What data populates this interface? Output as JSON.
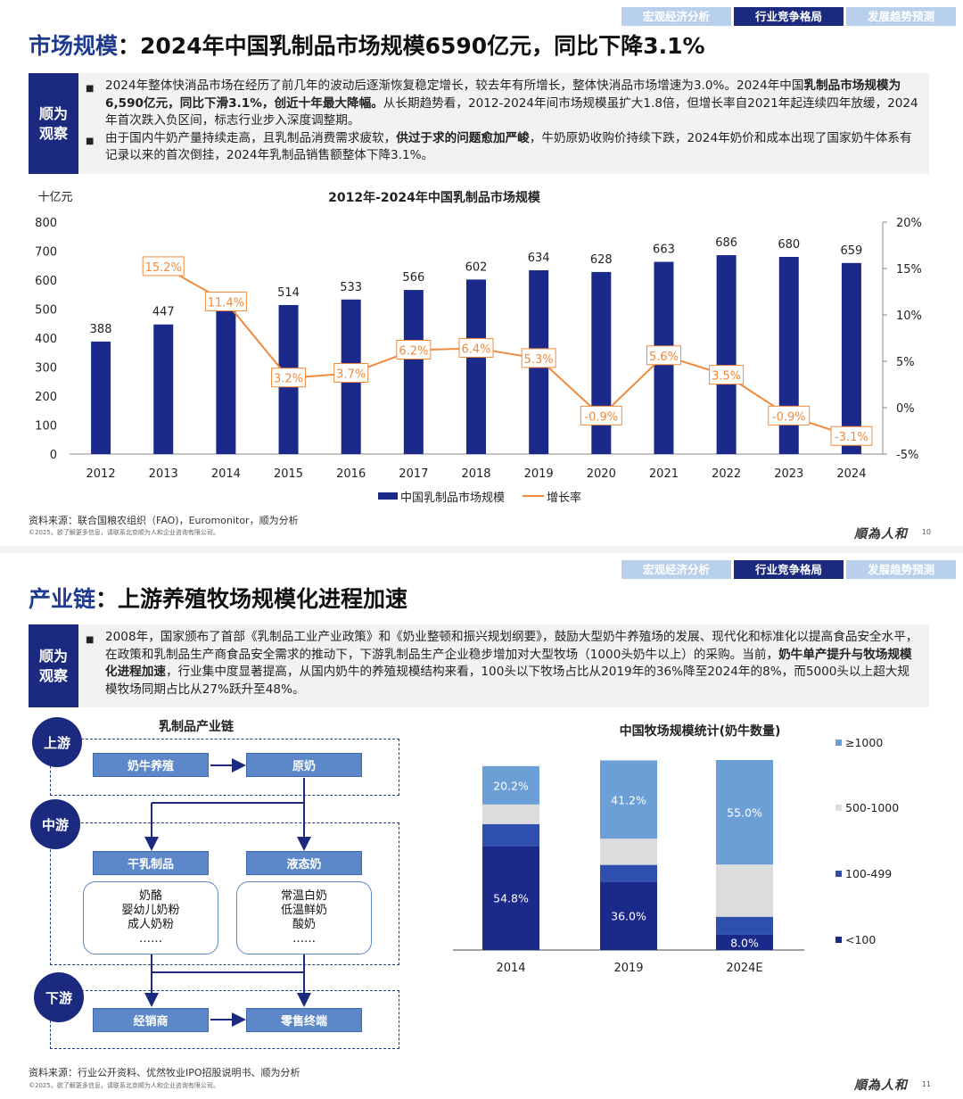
{
  "slide1": {
    "tabs": [
      "宏观经济分析",
      "行业竞争格局",
      "发展趋势预测"
    ],
    "title_key": "市场规模",
    "title_rest": "：2024年中国乳制品市场规模6590亿元，同比下降3.1%",
    "obs_badge": [
      "顺为",
      "观察"
    ],
    "bullet1": {
      "a": "2024年整体快消品市场在经历了前几年的波动后逐渐恢复稳定增长，较去年有所增长，整体快消品市场增速为3.0%。2024年中国",
      "b": "乳制品市场规模为6,590亿元，同比下滑3.1%，创近十年最大降幅。",
      "c": "从长期趋势看，2012-2024年间市场规模虽扩大1.8倍，但增长率自2021年起连续四年放缓，2024年首次跌入负区间，标志行业步入深度调整期。"
    },
    "bullet2": {
      "a": "由于国内牛奶产量持续走高，且乳制品消费需求疲软，",
      "b": "供过于求的问题愈加严峻",
      "c": "，牛奶原奶收购价持续下跌，2024年奶价和成本出现了国家奶牛体系有记录以来的首次倒挂，2024年乳制品销售额整体下降3.1%。"
    },
    "source": "资料来源：联合国粮农组织（FAO)，Euromonitor，顺为分析",
    "copyright": "©2025。欲了解更多信息，请联系北京顺为人和企业咨询有限公司。",
    "logo": "順為人和",
    "page": "10"
  },
  "slide2": {
    "tabs": [
      "宏观经济分析",
      "行业竞争格局",
      "发展趋势预测"
    ],
    "title_key": "产业链",
    "title_rest": "：上游养殖牧场规模化进程加速",
    "obs_badge": [
      "顺为",
      "观察"
    ],
    "bullet1": {
      "a": "2008年，国家颁布了首部《乳制品工业产业政策》和《奶业整顿和振兴规划纲要》，鼓励大型奶牛养殖场的发展、现代化和标准化以提高食品安全水平，在政策和乳制品生产商食品安全需求的推动下，下游乳制品生产企业稳步增加对大型牧场（1000头奶牛以上）的采购。当前，",
      "b": "奶牛单产提升与牧场规模化进程加速",
      "c": "，行业集中度显著提高，从国内奶牛的养殖规模结构来看，100头以下牧场占比从2019年的36%降至2024年的8%，而5000头以上超大规模牧场同期占比从27%跃升至48%。"
    },
    "chain": {
      "title": "乳制品产业链",
      "stages": [
        "上游",
        "中游",
        "下游"
      ],
      "up": [
        "奶牛养殖",
        "原奶"
      ],
      "mid": [
        "干乳制品",
        "液态奶"
      ],
      "dry_items": [
        "奶酪",
        "婴幼儿奶粉",
        "成人奶粉",
        "……"
      ],
      "liquid_items": [
        "常温白奶",
        "低温鲜奶",
        "酸奶",
        "……"
      ],
      "down": [
        "经销商",
        "零售终端"
      ]
    },
    "source": "资料来源：行业公开资料、优然牧业IPO招股说明书、顺为分析",
    "copyright": "©2025。欲了解更多信息，请联系北京顺为人和企业咨询有限公司。",
    "logo": "順為人和",
    "page": "11"
  },
  "chart_data": [
    {
      "type": "bar+line",
      "title": "2012年-2024年中国乳制品市场规模",
      "ylabel": "十亿元",
      "categories": [
        "2012",
        "2013",
        "2014",
        "2015",
        "2016",
        "2017",
        "2018",
        "2019",
        "2020",
        "2021",
        "2022",
        "2023",
        "2024"
      ],
      "series": [
        {
          "name": "中国乳制品市场规模",
          "type": "bar",
          "axis": "left",
          "values": [
            388,
            447,
            498,
            514,
            533,
            566,
            602,
            634,
            628,
            663,
            686,
            680,
            659
          ]
        },
        {
          "name": "增长率",
          "type": "line",
          "axis": "right",
          "values": [
            null,
            15.2,
            11.4,
            3.2,
            3.7,
            6.2,
            6.4,
            5.3,
            -0.9,
            5.6,
            3.5,
            -0.9,
            -3.1
          ],
          "labels": [
            "",
            "15.2%",
            "11.4%",
            "3.2%",
            "3.7%",
            "6.2%",
            "6.4%",
            "5.3%",
            "-0.9%",
            "5.6%",
            "3.5%",
            "-0.9%",
            "-3.1%"
          ]
        }
      ],
      "ylim_left": [
        0,
        800
      ],
      "yticks_left": [
        "0",
        "100",
        "200",
        "300",
        "400",
        "500",
        "600",
        "700",
        "800"
      ],
      "ylim_right": [
        -5,
        20
      ],
      "yticks_right": [
        "-5%",
        "0%",
        "5%",
        "10%",
        "15%",
        "20%"
      ],
      "legend": "bottom",
      "colors": {
        "bar": "#1b2a8a",
        "line": "#f08a3c"
      }
    },
    {
      "type": "stacked-bar",
      "title": "中国牧场规模统计(奶牛数量)",
      "categories": [
        "2014",
        "2019",
        "2024E"
      ],
      "series": [
        {
          "name": "<100",
          "values": [
            54.8,
            36.0,
            8.0
          ],
          "labels": [
            "54.8%",
            "36.0%",
            "8.0%"
          ],
          "color": "#1b2a8a"
        },
        {
          "name": "100-499",
          "values": [
            11.5,
            8.8,
            9.5
          ],
          "labels": [
            "",
            "",
            ""
          ],
          "color": "#2f4fae"
        },
        {
          "name": "500-1000",
          "values": [
            10.3,
            13.8,
            27.5
          ],
          "labels": [
            "",
            "",
            ""
          ],
          "color": "#dcdcdc"
        },
        {
          "name": "≥1000",
          "values": [
            20.2,
            41.2,
            55.0
          ],
          "labels": [
            "20.2%",
            "41.2%",
            "55.0%"
          ],
          "color": "#6b9fd6"
        }
      ],
      "ylim": [
        0,
        100
      ],
      "legend": "right"
    }
  ]
}
